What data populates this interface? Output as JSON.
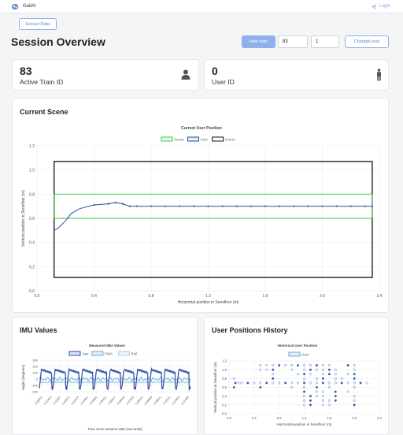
{
  "nav": {
    "brand": "GaitAI",
    "login": "Login"
  },
  "toolbar": {
    "extract": "Extract Data",
    "new_train": "New train",
    "train_input": "83",
    "level_input": "1",
    "change_level": "ChangeLevel"
  },
  "page_title": "Session Overview",
  "stats": {
    "train_id_value": "83",
    "train_id_label": "Active Train ID",
    "user_id_value": "0",
    "user_id_label": "User ID"
  },
  "sections": {
    "scene": "Current Scene",
    "imu": "IMU Values",
    "history": "User Positions History"
  },
  "colors": {
    "scene": "#45c94b",
    "user": "#2b4ea8",
    "frame": "#111111",
    "pitch": "#6fa8dc",
    "roll": "#a8cde8"
  },
  "chart_data": [
    {
      "type": "line",
      "title": "Current User Position",
      "xlabel": "Horizontal position in Sensfloor (m)",
      "ylabel": "Vertical position in Sensfloor (m)",
      "xlim": [
        0,
        2.4
      ],
      "ylim": [
        0,
        1.2
      ],
      "xticks": [
        "0.0",
        "0.4",
        "0.8",
        "1.2",
        "1.6",
        "2.0",
        "2.4"
      ],
      "yticks": [
        "0.0",
        "0.2",
        "0.4",
        "0.6",
        "0.8",
        "1.0",
        "1.2"
      ],
      "legend": "top",
      "series": [
        {
          "name": "Scene",
          "rect": {
            "x0": 0.12,
            "x1": 2.35,
            "y0": 0.6,
            "y1": 0.8
          }
        },
        {
          "name": "User",
          "points": [
            [
              0.12,
              0.5
            ],
            [
              0.15,
              0.52
            ],
            [
              0.2,
              0.58
            ],
            [
              0.24,
              0.64
            ],
            [
              0.3,
              0.68
            ],
            [
              0.4,
              0.71
            ],
            [
              0.5,
              0.72
            ],
            [
              0.55,
              0.73
            ],
            [
              0.6,
              0.72
            ],
            [
              0.65,
              0.7
            ],
            [
              0.7,
              0.7
            ],
            [
              0.8,
              0.7
            ],
            [
              0.9,
              0.7
            ],
            [
              1.0,
              0.7
            ],
            [
              1.1,
              0.7
            ],
            [
              1.2,
              0.7
            ],
            [
              1.3,
              0.7
            ],
            [
              1.4,
              0.7
            ],
            [
              1.5,
              0.7
            ],
            [
              1.6,
              0.7
            ],
            [
              1.7,
              0.7
            ],
            [
              1.8,
              0.7
            ],
            [
              1.9,
              0.7
            ],
            [
              2.0,
              0.7
            ],
            [
              2.1,
              0.7
            ],
            [
              2.2,
              0.7
            ],
            [
              2.3,
              0.7
            ],
            [
              2.35,
              0.7
            ]
          ]
        },
        {
          "name": "Scene",
          "rect": {
            "x0": 0.12,
            "x1": 2.35,
            "y0": 0.11,
            "y1": 1.07
          }
        }
      ]
    },
    {
      "type": "line",
      "title": "Measured IMU Values",
      "xlabel": "Time since session start (Seconds)",
      "ylabel": "Angle (Degrees)",
      "ylim": [
        -250,
        300
      ],
      "yticks": [
        "-200",
        "-100",
        "0",
        "100",
        "200",
        "300"
      ],
      "xticks": [
        "0.00501",
        "0.01403",
        "0.02287",
        "0.03071",
        "0.03474",
        "0.04051",
        "0.04881",
        "0.05461",
        "0.06047",
        "0.06649",
        "0.07302",
        "0.08110",
        "0.08869",
        "0.09541",
        "0.10151",
        "0.10905",
        "0.11489"
      ],
      "legend": "top",
      "series": [
        {
          "name": "Yaw",
          "pattern": "sawtooth",
          "min": -150,
          "max": 150
        },
        {
          "name": "Pitch",
          "pattern": "oscillation",
          "min": -30,
          "max": 30
        },
        {
          "name": "Roll",
          "pattern": "flat",
          "min": -60,
          "max": -40
        }
      ]
    },
    {
      "type": "scatter",
      "title": "Historical User Position",
      "xlabel": "Horizontal position in Sensfloor (m)",
      "ylabel": "Vertical position in Sensfloor (m)",
      "xlim": [
        0,
        2.4
      ],
      "ylim": [
        0,
        1.2
      ],
      "xticks": [
        "0.0",
        "0.4",
        "0.8",
        "1.2",
        "1.6",
        "2.0",
        "2.4"
      ],
      "yticks": [
        "0.0",
        "0.2",
        "0.4",
        "0.6",
        "0.8",
        "1.0",
        "1.2"
      ],
      "legend": "top",
      "series": [
        {
          "name": "User",
          "points": [
            [
              0.1,
              0.7
            ],
            [
              0.15,
              0.7
            ],
            [
              0.2,
              0.7
            ],
            [
              0.3,
              0.7
            ],
            [
              0.4,
              0.7
            ],
            [
              0.5,
              0.7
            ],
            [
              0.6,
              0.7
            ],
            [
              0.7,
              0.7
            ],
            [
              0.8,
              0.7
            ],
            [
              0.9,
              0.7
            ],
            [
              1.0,
              0.7
            ],
            [
              1.1,
              0.7
            ],
            [
              1.2,
              0.7
            ],
            [
              1.3,
              0.7
            ],
            [
              1.4,
              0.7
            ],
            [
              1.5,
              0.7
            ],
            [
              1.6,
              0.7
            ],
            [
              1.7,
              0.7
            ],
            [
              1.8,
              0.7
            ],
            [
              1.9,
              0.7
            ],
            [
              2.0,
              0.7
            ],
            [
              2.1,
              0.7
            ],
            [
              2.2,
              0.7
            ],
            [
              0.08,
              0.8
            ],
            [
              0.08,
              0.6
            ],
            [
              0.5,
              1.1
            ],
            [
              0.5,
              1.0
            ],
            [
              0.5,
              0.6
            ],
            [
              0.6,
              1.1
            ],
            [
              0.7,
              1.1
            ],
            [
              0.8,
              1.1
            ],
            [
              0.9,
              1.1
            ],
            [
              1.0,
              1.1
            ],
            [
              1.1,
              1.1
            ],
            [
              1.2,
              1.1
            ],
            [
              1.3,
              1.1
            ],
            [
              1.4,
              1.1
            ],
            [
              1.5,
              1.1
            ],
            [
              1.6,
              1.1
            ],
            [
              1.9,
              1.1
            ],
            [
              2.0,
              1.1
            ],
            [
              0.6,
              1.0
            ],
            [
              0.7,
              1.0
            ],
            [
              1.0,
              1.0
            ],
            [
              1.2,
              1.0
            ],
            [
              1.3,
              1.0
            ],
            [
              1.4,
              1.0
            ],
            [
              1.5,
              1.0
            ],
            [
              1.6,
              1.0
            ],
            [
              1.7,
              1.0
            ],
            [
              2.0,
              1.0
            ],
            [
              2.0,
              0.9
            ],
            [
              0.7,
              0.9
            ],
            [
              1.1,
              0.9
            ],
            [
              1.2,
              0.9
            ],
            [
              1.3,
              0.9
            ],
            [
              1.5,
              0.9
            ],
            [
              1.6,
              0.9
            ],
            [
              1.7,
              0.9
            ],
            [
              1.9,
              0.9
            ],
            [
              0.7,
              0.8
            ],
            [
              1.2,
              0.8
            ],
            [
              1.4,
              0.8
            ],
            [
              1.5,
              0.8
            ],
            [
              1.7,
              0.8
            ],
            [
              1.8,
              0.8
            ],
            [
              2.0,
              0.8
            ],
            [
              1.0,
              0.6
            ],
            [
              1.2,
              0.6
            ],
            [
              1.4,
              0.6
            ],
            [
              1.6,
              0.6
            ],
            [
              2.0,
              0.6
            ],
            [
              1.2,
              0.5
            ],
            [
              1.4,
              0.5
            ],
            [
              1.5,
              0.5
            ],
            [
              1.7,
              0.5
            ],
            [
              1.9,
              0.5
            ],
            [
              1.2,
              0.4
            ],
            [
              1.3,
              0.4
            ],
            [
              1.4,
              0.4
            ],
            [
              1.5,
              0.4
            ],
            [
              1.7,
              0.4
            ],
            [
              2.0,
              0.4
            ],
            [
              1.2,
              0.3
            ],
            [
              1.3,
              0.3
            ],
            [
              1.5,
              0.3
            ],
            [
              1.6,
              0.3
            ],
            [
              1.7,
              0.3
            ],
            [
              2.0,
              0.3
            ],
            [
              1.2,
              0.2
            ],
            [
              1.3,
              0.2
            ],
            [
              1.5,
              0.2
            ],
            [
              1.6,
              0.2
            ],
            [
              2.0,
              0.2
            ]
          ]
        }
      ]
    }
  ]
}
